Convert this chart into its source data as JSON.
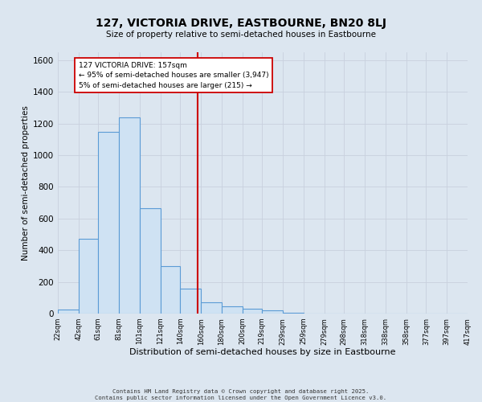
{
  "title": "127, VICTORIA DRIVE, EASTBOURNE, BN20 8LJ",
  "subtitle": "Size of property relative to semi-detached houses in Eastbourne",
  "xlabel": "Distribution of semi-detached houses by size in Eastbourne",
  "ylabel": "Number of semi-detached properties",
  "bin_edges": [
    22,
    42,
    61,
    81,
    101,
    121,
    140,
    160,
    180,
    200,
    219,
    239,
    259,
    279,
    298,
    318,
    338,
    358,
    377,
    397,
    417
  ],
  "bin_labels": [
    "22sqm",
    "42sqm",
    "61sqm",
    "81sqm",
    "101sqm",
    "121sqm",
    "140sqm",
    "160sqm",
    "180sqm",
    "200sqm",
    "219sqm",
    "239sqm",
    "259sqm",
    "279sqm",
    "298sqm",
    "318sqm",
    "338sqm",
    "358sqm",
    "377sqm",
    "397sqm",
    "417sqm"
  ],
  "counts": [
    25,
    470,
    1145,
    1240,
    665,
    300,
    155,
    70,
    45,
    30,
    20,
    5,
    0,
    0,
    0,
    0,
    0,
    0,
    0,
    0
  ],
  "bar_facecolor": "#cfe2f3",
  "bar_edgecolor": "#5b9bd5",
  "grid_color": "#c8d0de",
  "background_color": "#dce6f0",
  "vline_x": 157,
  "vline_color": "#cc0000",
  "annotation_text": "127 VICTORIA DRIVE: 157sqm\n← 95% of semi-detached houses are smaller (3,947)\n5% of semi-detached houses are larger (215) →",
  "annotation_box_edgecolor": "#cc0000",
  "ylim": [
    0,
    1650
  ],
  "yticks": [
    0,
    200,
    400,
    600,
    800,
    1000,
    1200,
    1400,
    1600
  ],
  "footnote1": "Contains HM Land Registry data © Crown copyright and database right 2025.",
  "footnote2": "Contains public sector information licensed under the Open Government Licence v3.0."
}
